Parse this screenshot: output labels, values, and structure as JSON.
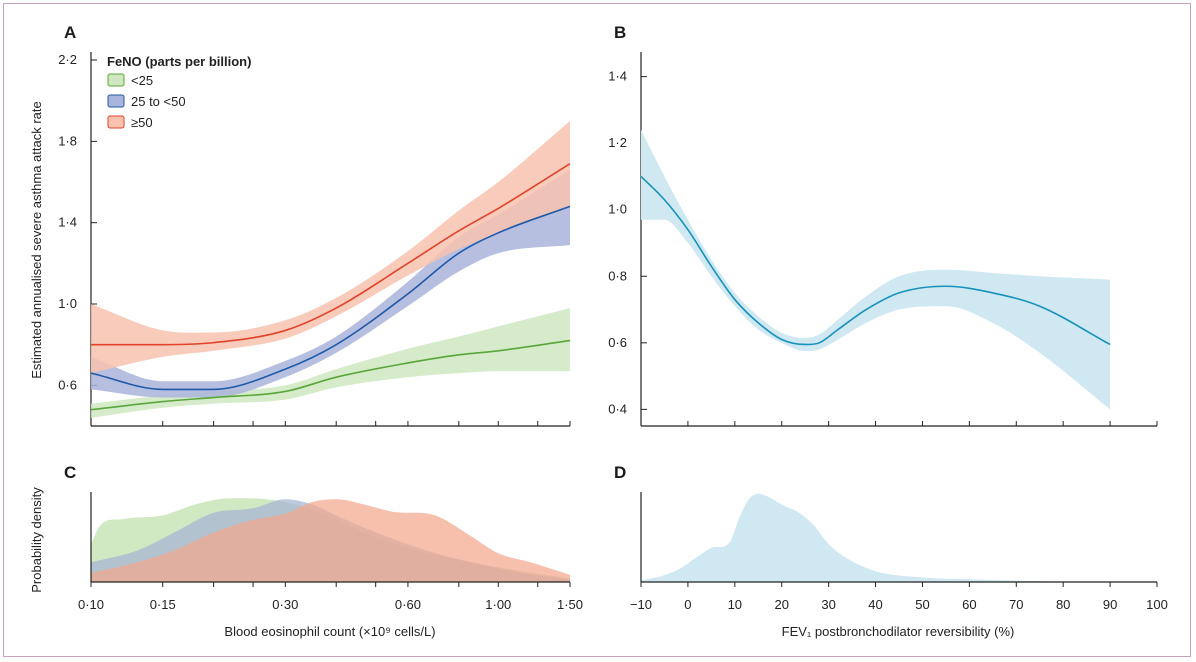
{
  "colors": {
    "green_line": "#5aa63a",
    "green_band": "#cfe8bf",
    "blue_line": "#1f5aa8",
    "blue_band": "#aab4dc",
    "red_line": "#e2432b",
    "red_band": "#f8c2ae",
    "teal_line": "#1792bd",
    "teal_band": "#cfe8f1"
  },
  "legend": {
    "title": "FeNO (parts per billion)",
    "items": [
      {
        "label": "<25",
        "color": "#cfe8bf",
        "border": "#5aa63a"
      },
      {
        "label": "25 to <50",
        "color": "#aab4dc",
        "border": "#1f5aa8"
      },
      {
        "label": "≥50",
        "color": "#f8c2ae",
        "border": "#e2432b"
      }
    ]
  },
  "chart_data": [
    {
      "panel": "A",
      "type": "line",
      "ylabel": "Estimated annualised severe asthma attack rate",
      "xscale": "log",
      "xticks": [
        0.1,
        0.15,
        0.3,
        0.6,
        1.0,
        1.5
      ],
      "xtick_labels": [
        "0·10",
        "0·15",
        "0·30",
        "0·60",
        "1·00",
        "1·50"
      ],
      "yticks": [
        0.6,
        1.0,
        1.4,
        1.8,
        2.2
      ],
      "ytick_labels": [
        "0·6",
        "1·0",
        "1·4",
        "1·8",
        "2·2"
      ],
      "xlim": [
        0.1,
        1.5
      ],
      "ylim": [
        0.4,
        2.2
      ],
      "series": [
        {
          "name": "<25",
          "line_color": "#5aa63a",
          "band_color": "#cfe8bf",
          "x": [
            0.1,
            0.15,
            0.2,
            0.3,
            0.4,
            0.6,
            0.8,
            1.0,
            1.5
          ],
          "y": [
            0.48,
            0.52,
            0.54,
            0.57,
            0.64,
            0.71,
            0.75,
            0.77,
            0.82
          ],
          "lower": [
            0.44,
            0.49,
            0.51,
            0.53,
            0.59,
            0.64,
            0.66,
            0.67,
            0.67
          ],
          "upper": [
            0.51,
            0.55,
            0.57,
            0.6,
            0.68,
            0.78,
            0.84,
            0.89,
            0.98
          ]
        },
        {
          "name": "25 to <50",
          "line_color": "#1f5aa8",
          "band_color": "#aab4dc",
          "x": [
            0.1,
            0.15,
            0.2,
            0.3,
            0.4,
            0.6,
            0.8,
            1.0,
            1.5
          ],
          "y": [
            0.66,
            0.58,
            0.58,
            0.68,
            0.8,
            1.05,
            1.25,
            1.35,
            1.48
          ],
          "lower": [
            0.58,
            0.54,
            0.54,
            0.64,
            0.76,
            0.99,
            1.16,
            1.25,
            1.29
          ],
          "upper": [
            0.74,
            0.62,
            0.62,
            0.72,
            0.84,
            1.11,
            1.33,
            1.44,
            1.66
          ]
        },
        {
          "name": "≥50",
          "line_color": "#e2432b",
          "band_color": "#f8c2ae",
          "x": [
            0.1,
            0.15,
            0.2,
            0.3,
            0.4,
            0.6,
            0.8,
            1.0,
            1.5
          ],
          "y": [
            0.8,
            0.8,
            0.81,
            0.87,
            0.98,
            1.2,
            1.36,
            1.47,
            1.69
          ],
          "lower": [
            0.66,
            0.74,
            0.77,
            0.83,
            0.94,
            1.14,
            1.27,
            1.35,
            1.48
          ],
          "upper": [
            1.0,
            0.87,
            0.86,
            0.92,
            1.03,
            1.26,
            1.46,
            1.6,
            1.9
          ]
        }
      ]
    },
    {
      "panel": "B",
      "type": "line",
      "xlim": [
        -10,
        100
      ],
      "ylim": [
        0.35,
        1.45
      ],
      "xticks": [
        -10,
        0,
        10,
        20,
        30,
        40,
        50,
        60,
        70,
        80,
        90,
        100
      ],
      "yticks": [
        0.4,
        0.6,
        0.8,
        1.0,
        1.2,
        1.4
      ],
      "ytick_labels": [
        "0·4",
        "0·6",
        "0·8",
        "1·0",
        "1·2",
        "1·4"
      ],
      "series": [
        {
          "line_color": "#1792bd",
          "band_color": "#cfe8f1",
          "x": [
            -10,
            -5,
            0,
            5,
            10,
            15,
            20,
            25,
            28,
            32,
            38,
            45,
            55,
            65,
            75,
            90
          ],
          "y": [
            1.1,
            1.03,
            0.94,
            0.83,
            0.73,
            0.66,
            0.61,
            0.595,
            0.6,
            0.64,
            0.7,
            0.75,
            0.77,
            0.75,
            0.71,
            0.595
          ],
          "lower": [
            0.97,
            0.97,
            0.9,
            0.8,
            0.71,
            0.64,
            0.6,
            0.575,
            0.58,
            0.61,
            0.66,
            0.7,
            0.71,
            0.66,
            0.57,
            0.4
          ],
          "upper": [
            1.24,
            1.1,
            0.97,
            0.85,
            0.75,
            0.68,
            0.63,
            0.615,
            0.625,
            0.67,
            0.74,
            0.8,
            0.82,
            0.81,
            0.8,
            0.79
          ]
        }
      ]
    },
    {
      "panel": "C",
      "type": "area",
      "xlabel": "Blood eosinophil count (×10⁹ cells/L)",
      "ylabel": "Probability density",
      "xscale": "log",
      "xlim": [
        0.1,
        1.5
      ],
      "ylim": [
        0,
        1
      ],
      "xticks": [
        0.1,
        0.15,
        0.3,
        0.6,
        1.0,
        1.5
      ],
      "xtick_labels": [
        "0·10",
        "0·15",
        "0·30",
        "0·60",
        "1·00",
        "1·50"
      ],
      "series": [
        {
          "name": "<25",
          "color": "#cfe8bf",
          "x": [
            0.1,
            0.105,
            0.12,
            0.15,
            0.18,
            0.22,
            0.27,
            0.32,
            0.38,
            0.45,
            0.55,
            0.7,
            0.9,
            1.15,
            1.5
          ],
          "y": [
            0.42,
            0.62,
            0.7,
            0.74,
            0.86,
            0.93,
            0.92,
            0.86,
            0.74,
            0.58,
            0.43,
            0.3,
            0.2,
            0.12,
            0.04
          ]
        },
        {
          "name": "25 to <50",
          "color": "#a6b4d4",
          "x": [
            0.1,
            0.13,
            0.16,
            0.2,
            0.25,
            0.3,
            0.35,
            0.4,
            0.47,
            0.55,
            0.7,
            0.9,
            1.15,
            1.5
          ],
          "y": [
            0.22,
            0.35,
            0.55,
            0.77,
            0.82,
            0.92,
            0.86,
            0.74,
            0.6,
            0.48,
            0.32,
            0.2,
            0.1,
            0.03
          ]
        },
        {
          "name": "≥50",
          "color": "#f3a78e",
          "x": [
            0.1,
            0.13,
            0.16,
            0.2,
            0.25,
            0.3,
            0.35,
            0.4,
            0.47,
            0.55,
            0.7,
            0.85,
            1.0,
            1.2,
            1.5
          ],
          "y": [
            0.1,
            0.22,
            0.35,
            0.55,
            0.69,
            0.76,
            0.89,
            0.92,
            0.86,
            0.78,
            0.74,
            0.52,
            0.32,
            0.22,
            0.08
          ]
        }
      ]
    },
    {
      "panel": "D",
      "type": "area",
      "xlabel": "FEV₁ postbronchodilator reversibility (%)",
      "xlim": [
        -10,
        100
      ],
      "ylim": [
        0,
        1
      ],
      "xticks": [
        -10,
        0,
        10,
        20,
        30,
        40,
        50,
        60,
        70,
        80,
        90,
        100
      ],
      "xtick_labels": [
        "−10",
        "0",
        "10",
        "20",
        "30",
        "40",
        "50",
        "60",
        "70",
        "80",
        "90",
        "100"
      ],
      "series": [
        {
          "color": "#cfe8f1",
          "x": [
            -10,
            -6,
            -2,
            2,
            5,
            9,
            11,
            13,
            15,
            17,
            20,
            24,
            27,
            30,
            34,
            40,
            50,
            60,
            75,
            90
          ],
          "y": [
            0.02,
            0.06,
            0.14,
            0.28,
            0.38,
            0.45,
            0.72,
            0.92,
            0.98,
            0.95,
            0.86,
            0.76,
            0.62,
            0.42,
            0.26,
            0.12,
            0.05,
            0.03,
            0.01,
            0.0
          ]
        }
      ]
    }
  ],
  "panels": {
    "a": {
      "letter": "A"
    },
    "b": {
      "letter": "B"
    },
    "c": {
      "letter": "C"
    },
    "d": {
      "letter": "D"
    }
  }
}
